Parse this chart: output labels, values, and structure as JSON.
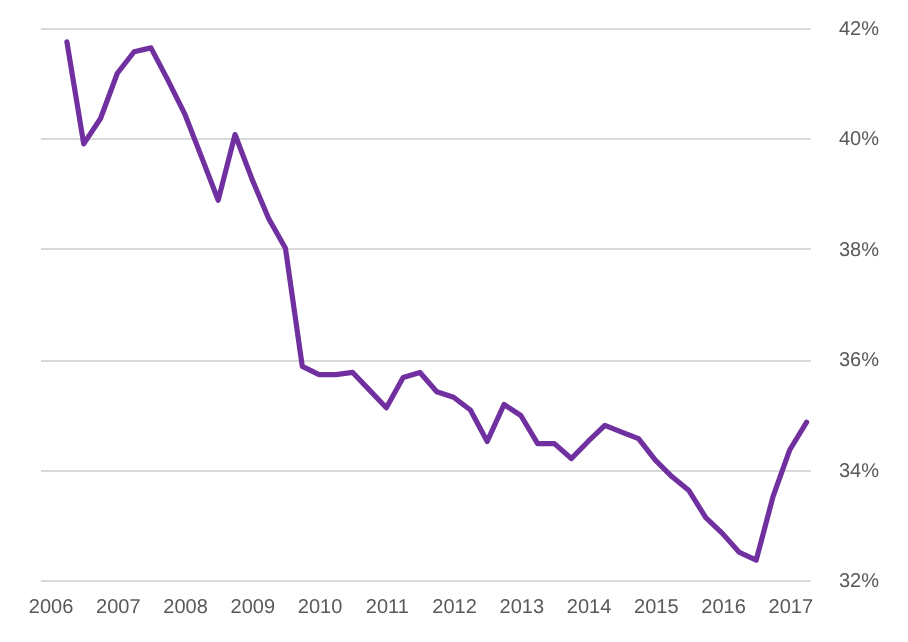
{
  "chart_data": {
    "type": "line",
    "x": [
      2006.25,
      2006.5,
      2006.75,
      2007,
      2007.25,
      2007.5,
      2007.75,
      2008,
      2008.25,
      2008.5,
      2008.75,
      2009,
      2009.25,
      2009.5,
      2009.75,
      2010,
      2010.25,
      2010.5,
      2010.75,
      2011,
      2011.25,
      2011.5,
      2011.75,
      2012,
      2012.25,
      2012.5,
      2012.75,
      2013,
      2013.25,
      2013.5,
      2013.75,
      2014,
      2014.25,
      2014.5,
      2014.75,
      2015,
      2015.25,
      2015.5,
      2015.75,
      2016,
      2016.25,
      2016.5,
      2016.75,
      2017,
      2017.25
    ],
    "series": [
      {
        "color": "#7030a0",
        "values": [
          41.75,
          39.9,
          40.36,
          41.18,
          41.57,
          41.64,
          41.06,
          40.45,
          39.67,
          38.88,
          40.07,
          39.27,
          38.55,
          38.01,
          35.87,
          35.72,
          35.72,
          35.76,
          35.44,
          35.12,
          35.67,
          35.76,
          35.41,
          35.31,
          35.08,
          34.51,
          35.18,
          34.98,
          34.47,
          34.47,
          34.2,
          34.51,
          34.8,
          34.68,
          34.56,
          34.17,
          33.87,
          33.62,
          33.13,
          32.84,
          32.5,
          32.36,
          33.51,
          34.36,
          34.86
        ]
      }
    ],
    "xlim": [
      2005.85,
      2017.3
    ],
    "xticks": [
      2006,
      2007,
      2008,
      2009,
      2010,
      2011,
      2012,
      2013,
      2014,
      2015,
      2016,
      2017
    ],
    "ylim": [
      32,
      42
    ],
    "yticks": [
      {
        "value": 32,
        "label": "32%"
      },
      {
        "value": 34,
        "label": "34%"
      },
      {
        "value": 36,
        "label": "36%"
      },
      {
        "value": 38,
        "label": "38%"
      },
      {
        "value": 40,
        "label": "40%"
      },
      {
        "value": 42,
        "label": "42%"
      }
    ],
    "grid": "y",
    "marker": "none",
    "line_style": "solid"
  }
}
